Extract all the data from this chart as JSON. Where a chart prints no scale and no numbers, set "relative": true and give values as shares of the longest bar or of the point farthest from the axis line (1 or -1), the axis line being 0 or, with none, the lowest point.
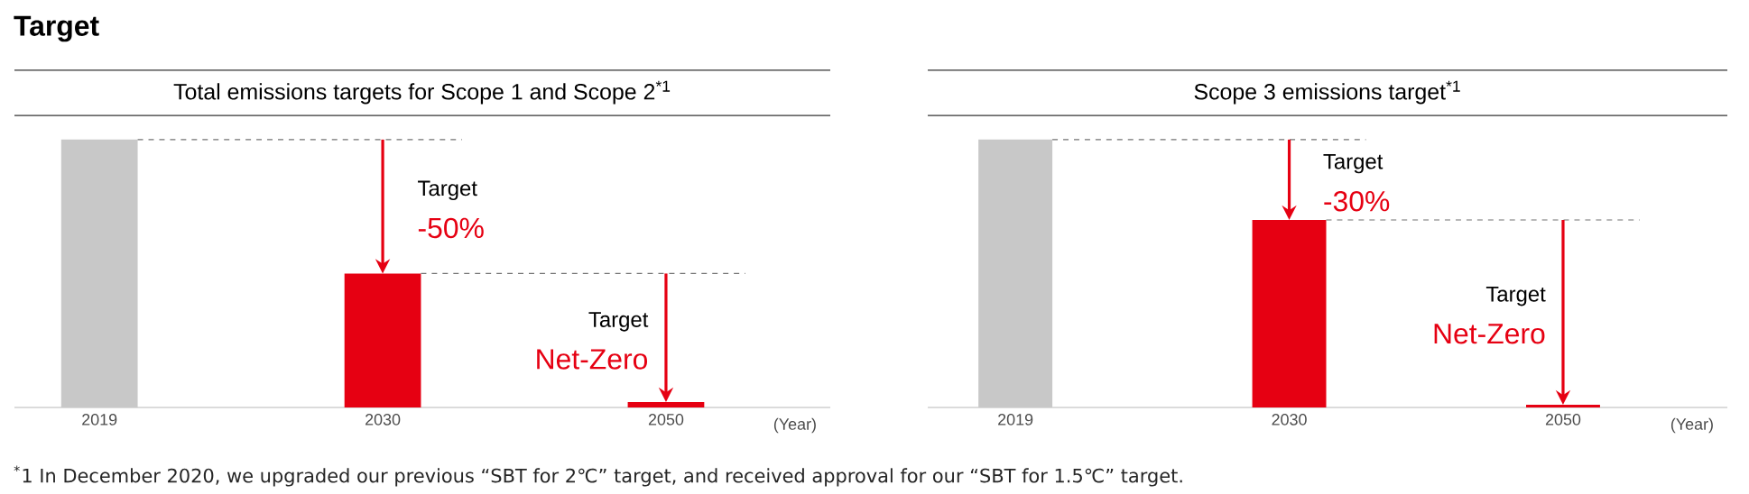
{
  "chart_data": [
    {
      "type": "bar",
      "title": "Total emissions targets for Scope 1 and Scope 2$^{*1}$",
      "xlabel": "(Year)",
      "categories": [
        "2019",
        "2030",
        "2050"
      ],
      "values": [
        1,
        0.5,
        0.02
      ],
      "colors": [
        "#c8c8c8",
        "#e60012",
        "#e60012"
      ],
      "relative": true,
      "annotations": [
        "Target",
        "Target",
        "-50%",
        "Target",
        "Net-Zero",
        "$^{*}$1 In December 2020, we upgraded our previous “SBT for 2℃” target, and received approval for our “SBT for 1.5℃” target."
      ]
    },
    {
      "type": "bar",
      "title": "Scope 3 emissions target$^{*1}$",
      "xlabel": "(Year)",
      "categories": [
        "2019",
        "2030",
        "2050"
      ],
      "values": [
        1,
        0.7,
        0.01
      ],
      "colors": [
        "#c8c8c8",
        "#e60012",
        "#e60012"
      ],
      "relative": true,
      "annotations": [
        "Target",
        "-30%",
        "Target",
        "Net-Zero"
      ]
    }
  ]
}
